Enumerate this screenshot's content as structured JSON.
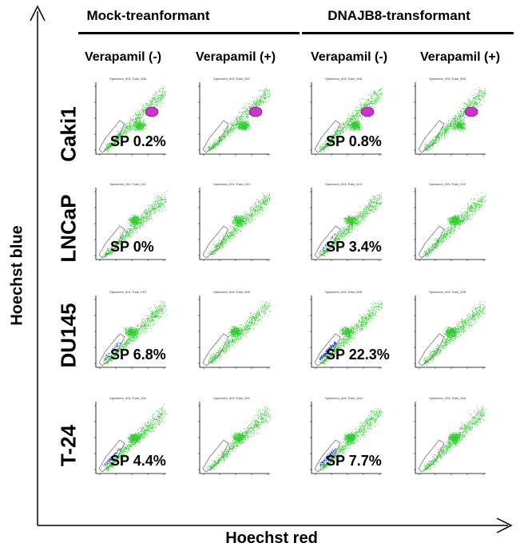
{
  "groups": [
    {
      "title": "Mock-treanformant"
    },
    {
      "title": "DNAJB8-transformant"
    }
  ],
  "columns": [
    {
      "title": "Verapamil (-)"
    },
    {
      "title": "Verapamil (+)"
    },
    {
      "title": "Verapamil (-)"
    },
    {
      "title": "Verapamil (+)"
    }
  ],
  "rows": [
    {
      "label": "Caki1"
    },
    {
      "label": "LNCaP"
    },
    {
      "label": "DU145"
    },
    {
      "label": "T-24"
    }
  ],
  "axes": {
    "x_title": "Hoechst red",
    "y_title": "Hoechst blue"
  },
  "plots": [
    [
      {
        "title": "Specimen_001-Tube_006",
        "sp": "SP 0.2%"
      },
      {
        "title": "Specimen_001-Tube_007",
        "sp": ""
      },
      {
        "title": "Specimen_001-Tube_008",
        "sp": "SP 0.8%"
      },
      {
        "title": "Specimen_001-Tube_009",
        "sp": ""
      }
    ],
    [
      {
        "title": "Specimen_001-Tube_011",
        "sp": "SP 0%"
      },
      {
        "title": "Specimen_001-Tube_010",
        "sp": ""
      },
      {
        "title": "Specimen_001-Tube_013",
        "sp": "SP 3.4%"
      },
      {
        "title": "Specimen_001-Tube_012",
        "sp": ""
      }
    ],
    [
      {
        "title": "Specimen_001-Tube_010",
        "sp": "SP 6.8%"
      },
      {
        "title": "Specimen_001-Tube_009",
        "sp": ""
      },
      {
        "title": "Specimen_001-Tube_006",
        "sp": "SP 22.3%"
      },
      {
        "title": "Specimen_001-Tube_005",
        "sp": ""
      }
    ],
    [
      {
        "title": "Specimen_001-Tube_002",
        "sp": "SP 4.4%"
      },
      {
        "title": "Specimen_001-Tube_001",
        "sp": ""
      },
      {
        "title": "Specimen_001-Tube_004",
        "sp": "SP 7.7%"
      },
      {
        "title": "Specimen_001-Tube_003",
        "sp": ""
      }
    ]
  ],
  "colors": {
    "main_population": "#33cc33",
    "side_population": "#2233cc",
    "gated_population": "#cc33cc",
    "gate_outline": "#777777",
    "axis": "#000000"
  }
}
